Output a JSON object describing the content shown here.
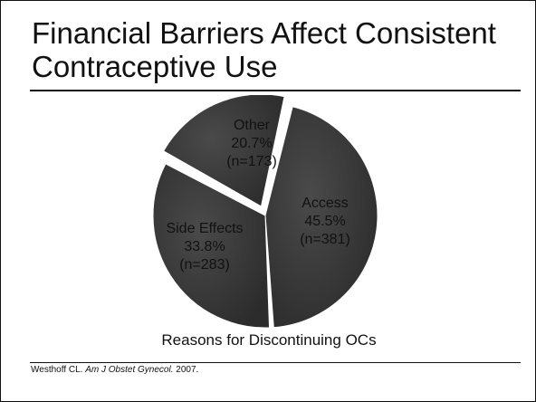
{
  "slide": {
    "title": "Financial Barriers Affect Consistent Contraceptive Use",
    "caption": "Reasons for Discontinuing OCs",
    "citation": {
      "author": "Westhoff CL.",
      "journal": "Am J Obstet Gynecol.",
      "year": "2007."
    }
  },
  "chart_data": {
    "type": "pie",
    "title": "Reasons for Discontinuing OCs",
    "slices": [
      {
        "label": "Access",
        "percent": "45.5%",
        "n": "(n=381)",
        "value": 45.5,
        "color": "#3a3a3a",
        "explode": false
      },
      {
        "label": "Side Effects",
        "percent": "33.8%",
        "n": "(n=283)",
        "value": 33.8,
        "color": "#3a3a3a",
        "explode": false
      },
      {
        "label": "Other",
        "percent": "20.7%",
        "n": "(n=173)",
        "value": 20.7,
        "color": "#3a3a3a",
        "explode": true
      }
    ]
  }
}
